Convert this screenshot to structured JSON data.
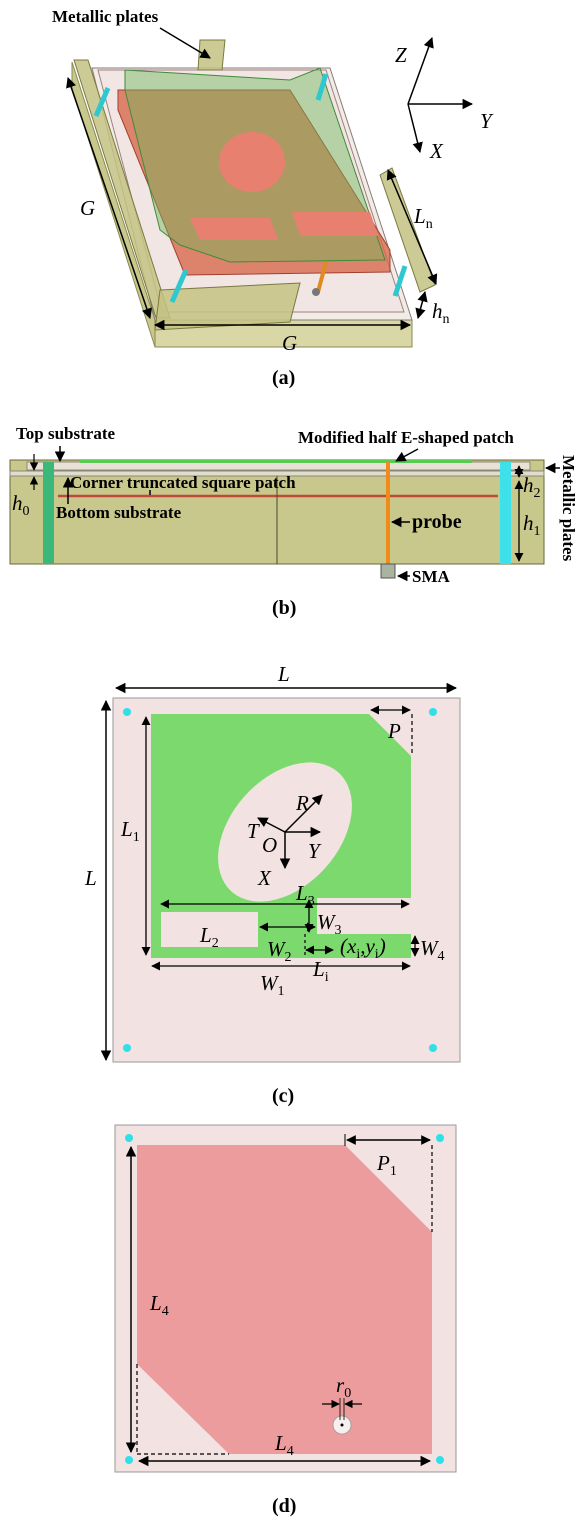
{
  "panel_a": {
    "caption": "(a)",
    "metallic_plates": "Metallic plates",
    "axes": {
      "z": "Z",
      "y": "Y",
      "x": "X"
    },
    "dim_g_left": "G",
    "dim_g_bottom": "G",
    "dim_ln": {
      "main": "L",
      "sub": "n"
    },
    "dim_hn": {
      "main": "h",
      "sub": "n"
    }
  },
  "panel_b": {
    "caption": "(b)",
    "top_substrate": "Top substrate",
    "modified_patch": "Modified half E-shaped patch",
    "corner_patch": "Corner truncated square patch",
    "bottom_substrate": "Bottom substrate",
    "probe": "probe",
    "sma": "SMA",
    "metallic_plates": "Metallic plates",
    "h0": {
      "main": "h",
      "sub": "0"
    },
    "h1": {
      "main": "h",
      "sub": "1"
    },
    "h2": {
      "main": "h",
      "sub": "2"
    }
  },
  "panel_c": {
    "caption": "(c)",
    "L_top": "L",
    "L_left": "L",
    "P": "P",
    "L1": {
      "main": "L",
      "sub": "1"
    },
    "R": "R",
    "T": "T",
    "O": "O",
    "Y": "Y",
    "X": "X",
    "L3": {
      "main": "L",
      "sub": "3"
    },
    "L2": {
      "main": "L",
      "sub": "2"
    },
    "W2": {
      "main": "W",
      "sub": "2"
    },
    "W3": {
      "main": "W",
      "sub": "3"
    },
    "Li": {
      "main": "L",
      "sub": "i"
    },
    "feed": {
      "open": "(",
      "x": "x",
      "xs": "i",
      "comma": ",",
      "y": "y",
      "ys": "i",
      "close": ")"
    },
    "W4": {
      "main": "W",
      "sub": "4"
    },
    "W1": {
      "main": "W",
      "sub": "1"
    }
  },
  "panel_d": {
    "caption": "(d)",
    "P1": {
      "main": "P",
      "sub": "1"
    },
    "L4_left": {
      "main": "L",
      "sub": "4"
    },
    "L4_bottom": {
      "main": "L",
      "sub": "4"
    },
    "r0": {
      "main": "r",
      "sub": "0"
    }
  },
  "colors": {
    "green": "#7cd96e",
    "pink_bg": "#f2e2e2",
    "red_patch": "#ec9c9c",
    "olive": "#c8c78c",
    "cyan": "#2ee0e8"
  }
}
